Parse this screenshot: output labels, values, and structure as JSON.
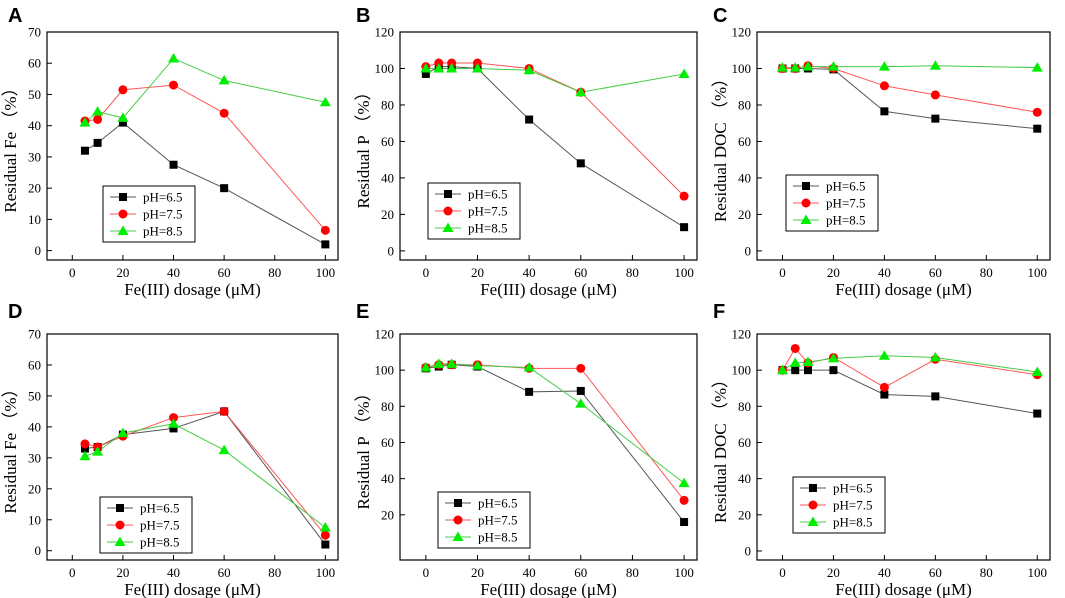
{
  "figure": {
    "colors": {
      "pH65": "#000000",
      "pH75": "#ff0000",
      "pH85": "#00ee00",
      "pH75_line": "#ff5555",
      "pH85_line": "#44cc44",
      "pH65_line": "#555555"
    }
  },
  "chart_data": [
    {
      "type": "line",
      "panel": "A",
      "xlabel": "Fe(III) dosage (μM)",
      "ylabel": "Residual Fe （%）",
      "xlim": [
        -10,
        105
      ],
      "ylim": [
        -3,
        70
      ],
      "xticks": [
        0,
        20,
        40,
        60,
        80,
        100
      ],
      "yticks": [
        0,
        10,
        20,
        30,
        40,
        50,
        60,
        70
      ],
      "legend_position": "bottom-left",
      "series": [
        {
          "name": "pH=6.5",
          "marker": "square",
          "x": [
            5,
            10,
            20,
            40,
            60,
            100
          ],
          "y": [
            32,
            34.5,
            41,
            27.5,
            20,
            2
          ]
        },
        {
          "name": "pH=7.5",
          "marker": "circle",
          "x": [
            5,
            10,
            20,
            40,
            60,
            100
          ],
          "y": [
            41.5,
            42,
            51.5,
            53,
            44,
            6.5
          ]
        },
        {
          "name": "pH=8.5",
          "marker": "triangle",
          "x": [
            5,
            10,
            20,
            40,
            60,
            100
          ],
          "y": [
            41,
            44.5,
            42.5,
            61.5,
            54.5,
            47.5
          ]
        }
      ]
    },
    {
      "type": "line",
      "panel": "B",
      "xlabel": "Fe(III) dosage (μM)",
      "ylabel": "Residual P （%）",
      "xlim": [
        -10,
        105
      ],
      "ylim": [
        -5,
        120
      ],
      "xticks": [
        0,
        20,
        40,
        60,
        80,
        100
      ],
      "yticks": [
        0,
        20,
        40,
        60,
        80,
        100,
        120
      ],
      "legend_position": "bottom-left",
      "series": [
        {
          "name": "pH=6.5",
          "marker": "square",
          "x": [
            0,
            5,
            10,
            20,
            40,
            60,
            100
          ],
          "y": [
            97,
            101,
            101,
            100,
            72,
            48,
            13
          ]
        },
        {
          "name": "pH=7.5",
          "marker": "circle",
          "x": [
            0,
            5,
            10,
            20,
            40,
            60,
            100
          ],
          "y": [
            101,
            103,
            103,
            103,
            100,
            87,
            30
          ]
        },
        {
          "name": "pH=8.5",
          "marker": "triangle",
          "x": [
            0,
            5,
            10,
            20,
            40,
            60,
            100
          ],
          "y": [
            100,
            100,
            100,
            100,
            99,
            87,
            97
          ]
        }
      ]
    },
    {
      "type": "line",
      "panel": "C",
      "xlabel": "Fe(III) dosage (μM)",
      "ylabel": "Residual DOC （%）",
      "xlim": [
        -10,
        105
      ],
      "ylim": [
        -5,
        120
      ],
      "xticks": [
        0,
        20,
        40,
        60,
        80,
        100
      ],
      "yticks": [
        0,
        20,
        40,
        60,
        80,
        100,
        120
      ],
      "legend_position": "bottom-left",
      "series": [
        {
          "name": "pH=6.5",
          "marker": "square",
          "x": [
            0,
            5,
            10,
            20,
            40,
            60,
            100
          ],
          "y": [
            100,
            100,
            100,
            99.5,
            76.5,
            72.5,
            67
          ]
        },
        {
          "name": "pH=7.5",
          "marker": "circle",
          "x": [
            0,
            5,
            10,
            20,
            40,
            60,
            100
          ],
          "y": [
            100,
            100,
            101.5,
            100,
            90.5,
            85.5,
            76
          ]
        },
        {
          "name": "pH=8.5",
          "marker": "triangle",
          "x": [
            0,
            5,
            10,
            20,
            40,
            60,
            100
          ],
          "y": [
            100.5,
            100.5,
            101,
            101,
            101,
            101.5,
            100.5
          ]
        }
      ]
    },
    {
      "type": "line",
      "panel": "D",
      "xlabel": "Fe(III) dosage (μM)",
      "ylabel": "Residual Fe （%）",
      "xlim": [
        -10,
        105
      ],
      "ylim": [
        -3,
        70
      ],
      "xticks": [
        0,
        20,
        40,
        60,
        80,
        100
      ],
      "yticks": [
        0,
        10,
        20,
        30,
        40,
        50,
        60,
        70
      ],
      "legend_position": "bottom-left",
      "series": [
        {
          "name": "pH=6.5",
          "marker": "square",
          "x": [
            5,
            10,
            20,
            40,
            60,
            100
          ],
          "y": [
            33,
            33.5,
            37.5,
            39.5,
            45,
            2
          ]
        },
        {
          "name": "pH=7.5",
          "marker": "circle",
          "x": [
            5,
            10,
            20,
            40,
            60,
            100
          ],
          "y": [
            34.5,
            33.5,
            37,
            43,
            45,
            5
          ]
        },
        {
          "name": "pH=8.5",
          "marker": "triangle",
          "x": [
            5,
            10,
            20,
            40,
            60,
            100
          ],
          "y": [
            30.5,
            32,
            38,
            41,
            32.5,
            7.5
          ]
        }
      ]
    },
    {
      "type": "line",
      "panel": "E",
      "xlabel": "Fe(III) dosage (μM)",
      "ylabel": "Residual P （%）",
      "xlim": [
        -10,
        105
      ],
      "ylim": [
        -5,
        120
      ],
      "xticks": [
        0,
        20,
        40,
        60,
        80,
        100
      ],
      "yticks": [
        20,
        40,
        60,
        80,
        100,
        120
      ],
      "legend_position": "bottom-left",
      "series": [
        {
          "name": "pH=6.5",
          "marker": "square",
          "x": [
            0,
            5,
            10,
            20,
            40,
            60,
            100
          ],
          "y": [
            101,
            102,
            103,
            102,
            88,
            88.5,
            16
          ]
        },
        {
          "name": "pH=7.5",
          "marker": "circle",
          "x": [
            0,
            5,
            10,
            20,
            40,
            60,
            100
          ],
          "y": [
            101.5,
            103,
            103,
            103,
            101,
            101,
            28
          ]
        },
        {
          "name": "pH=8.5",
          "marker": "triangle",
          "x": [
            0,
            5,
            10,
            20,
            40,
            60,
            100
          ],
          "y": [
            101.5,
            103.5,
            103.5,
            102.5,
            101.5,
            81.5,
            37.5
          ]
        }
      ]
    },
    {
      "type": "line",
      "panel": "F",
      "xlabel": "Fe(III) dosage (μM)",
      "ylabel": "Residual DOC （%）",
      "xlim": [
        -10,
        105
      ],
      "ylim": [
        -5,
        120
      ],
      "xticks": [
        0,
        20,
        40,
        60,
        80,
        100
      ],
      "yticks": [
        0,
        20,
        40,
        60,
        80,
        100,
        120
      ],
      "legend_position": "bottom-left",
      "series": [
        {
          "name": "pH=6.5",
          "marker": "square",
          "x": [
            0,
            5,
            10,
            20,
            40,
            60,
            100
          ],
          "y": [
            100,
            100,
            100,
            100,
            86.5,
            85.5,
            76
          ]
        },
        {
          "name": "pH=7.5",
          "marker": "circle",
          "x": [
            0,
            5,
            10,
            20,
            40,
            60,
            100
          ],
          "y": [
            100,
            112,
            104,
            107,
            90.5,
            106,
            97.5
          ]
        },
        {
          "name": "pH=8.5",
          "marker": "triangle",
          "x": [
            0,
            5,
            10,
            20,
            40,
            60,
            100
          ],
          "y": [
            100,
            104,
            104.5,
            106.5,
            108,
            107,
            99
          ]
        }
      ]
    }
  ]
}
